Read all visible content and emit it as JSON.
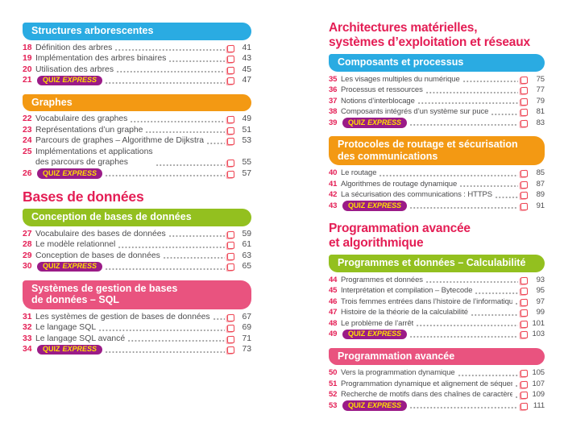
{
  "badge": {
    "bold": "QUIZ",
    "italic": "EXPRESS"
  },
  "colors": {
    "cyan": "#2aabe2",
    "orange": "#f39913",
    "green": "#93c01f",
    "pink": "#e9537f",
    "crimson_title": "#e41e55",
    "quiz_purple": "#9b1b87",
    "quiz_yellow": "#ffdf00",
    "body_text": "#4d4d4f",
    "checkbox_red": "#ee404f",
    "leader_dots": "#a0a0a0"
  },
  "columns": [
    {
      "name": "left",
      "blocks": [
        {
          "kind": "pill",
          "color": "cyan",
          "label": "Structures arborescentes"
        },
        {
          "kind": "entries",
          "items": [
            {
              "num": "18",
              "title": "Définition des arbres",
              "page": "41"
            },
            {
              "num": "19",
              "title": "Implémentation des arbres binaires",
              "page": "43"
            },
            {
              "num": "20",
              "title": "Utilisation des arbres",
              "page": "45"
            },
            {
              "num": "21",
              "quiz": true,
              "page": "47"
            }
          ]
        },
        {
          "kind": "pill",
          "color": "orange",
          "label": "Graphes"
        },
        {
          "kind": "entries",
          "items": [
            {
              "num": "22",
              "title": "Vocabulaire des graphes",
              "page": "49"
            },
            {
              "num": "23",
              "title": "Représentations d’un graphe",
              "page": "51"
            },
            {
              "num": "24",
              "title": "Parcours de graphes – Algorithme de Dijkstra",
              "page": "53"
            },
            {
              "num": "25",
              "title": "Implémentations et applications\ndes parcours de graphes",
              "page": "55"
            },
            {
              "num": "26",
              "quiz": true,
              "page": "57"
            }
          ]
        },
        {
          "kind": "title",
          "text": "Bases de données"
        },
        {
          "kind": "pill",
          "color": "green",
          "label": "Conception de bases de données"
        },
        {
          "kind": "entries",
          "items": [
            {
              "num": "27",
              "title": "Vocabulaire des bases de données",
              "page": "59"
            },
            {
              "num": "28",
              "title": "Le modèle relationnel",
              "page": "61"
            },
            {
              "num": "29",
              "title": "Conception de bases de données",
              "page": "63"
            },
            {
              "num": "30",
              "quiz": true,
              "page": "65"
            }
          ]
        },
        {
          "kind": "pill",
          "color": "pink",
          "label": "Systèmes de gestion de bases\nde données – SQL"
        },
        {
          "kind": "entries",
          "items": [
            {
              "num": "31",
              "title": "Les systèmes de gestion de bases de données",
              "page": "67"
            },
            {
              "num": "32",
              "title": "Le langage SQL",
              "page": "69"
            },
            {
              "num": "33",
              "title": "Le langage SQL avancé",
              "page": "71"
            },
            {
              "num": "34",
              "quiz": true,
              "page": "73"
            }
          ]
        }
      ]
    },
    {
      "name": "right",
      "blocks": [
        {
          "kind": "title",
          "text": "Architectures matérielles,\nsystèmes d’exploitation et réseaux"
        },
        {
          "kind": "pill",
          "color": "cyan",
          "label": "Composants et processus"
        },
        {
          "kind": "entries",
          "items": [
            {
              "num": "35",
              "title": "Les visages multiples du numérique",
              "page": "75"
            },
            {
              "num": "36",
              "title": "Processus et ressources",
              "page": "77"
            },
            {
              "num": "37",
              "title": "Notions d’interblocage",
              "page": "79"
            },
            {
              "num": "38",
              "title": "Composants intégrés d’un système sur puce",
              "page": "81"
            },
            {
              "num": "39",
              "quiz": true,
              "page": "83"
            }
          ]
        },
        {
          "kind": "pill",
          "color": "orange",
          "label": "Protocoles de routage et sécurisation\ndes communications"
        },
        {
          "kind": "entries",
          "items": [
            {
              "num": "40",
              "title": "Le routage",
              "page": "85"
            },
            {
              "num": "41",
              "title": "Algorithmes de routage dynamique",
              "page": "87"
            },
            {
              "num": "42",
              "title": "La sécurisation des communications : HTTPS",
              "page": "89"
            },
            {
              "num": "43",
              "quiz": true,
              "page": "91"
            }
          ]
        },
        {
          "kind": "title",
          "text": "Programmation avancée\net algorithmique"
        },
        {
          "kind": "pill",
          "color": "green",
          "label": "Programmes et données – Calculabilité"
        },
        {
          "kind": "entries",
          "items": [
            {
              "num": "44",
              "title": "Programmes et données",
              "page": "93"
            },
            {
              "num": "45",
              "title": "Interprétation et compilation – Bytecode",
              "page": "95"
            },
            {
              "num": "46",
              "title": "Trois femmes entrées dans l’histoire de l’informatique",
              "page": "97"
            },
            {
              "num": "47",
              "title": "Histoire de la théorie de la calculabilité",
              "page": "99"
            },
            {
              "num": "48",
              "title": "Le problème de l’arrêt",
              "page": "101"
            },
            {
              "num": "49",
              "quiz": true,
              "page": "103"
            }
          ]
        },
        {
          "kind": "pill",
          "color": "pink",
          "label": "Programmation avancée"
        },
        {
          "kind": "entries",
          "items": [
            {
              "num": "50",
              "title": "Vers la programmation dynamique",
              "page": "105"
            },
            {
              "num": "51",
              "title": "Programmation dynamique et alignement de séquences",
              "page": "107"
            },
            {
              "num": "52",
              "title": "Recherche de motifs dans des chaînes de caractères",
              "page": "109"
            },
            {
              "num": "53",
              "quiz": true,
              "page": "111"
            }
          ]
        }
      ]
    }
  ]
}
